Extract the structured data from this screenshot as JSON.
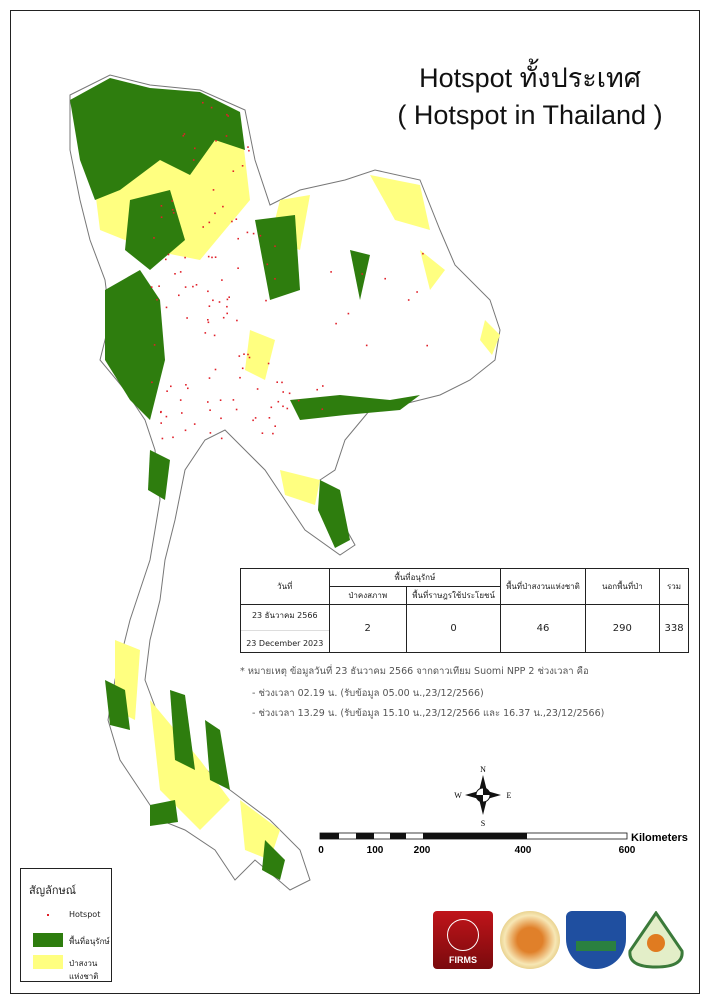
{
  "title": {
    "line1": "Hotspot ทั้งประเทศ",
    "line2": "( Hotspot in Thailand )"
  },
  "colors": {
    "conservation": "#2e7d0e",
    "national_reserve_forest": "#ffff80",
    "hotspot": "#e0202a",
    "province_border": "#888888"
  },
  "table": {
    "headers": {
      "date": "วันที่",
      "conservation": "พื้นที่อนุรักษ์",
      "intact_forest": "ป่าคงสภาพ",
      "people_use": "พื้นที่ราษฎรใช้ประโยชน์",
      "reserve_forest": "พื้นที่ป่าสงวนแห่งชาติ",
      "outside_forest": "นอกพื้นที่ป่า",
      "total": "รวม"
    },
    "row": {
      "date_th": "23 ธันวาคม 2566",
      "date_en": "23 December 2023",
      "intact_forest": "2",
      "people_use": "0",
      "reserve_forest": "46",
      "outside_forest": "290",
      "total": "338"
    }
  },
  "notes": [
    "* หมายเหตุ ข้อมูลวันที่ 23 ธันวาคม 2566 จากดาวเทียม Suomi NPP 2 ช่วงเวลา คือ",
    "- ช่วงเวลา 02.19 น. (รับข้อมูล 05.00 น.,23/12/2566)",
    "- ช่วงเวลา 13.29 น. (รับข้อมูล 15.10 น.,23/12/2566 และ 16.37 น.,23/12/2566)"
  ],
  "compass": {
    "n": "N",
    "s": "S",
    "e": "E",
    "w": "W"
  },
  "scale_bar": {
    "unit": "Kilometers",
    "ticks": [
      "0",
      "100",
      "200",
      "400",
      "600"
    ]
  },
  "legend": {
    "title": "สัญลักษณ์",
    "items": [
      {
        "label": "Hotspot",
        "symbol": "red-dot"
      },
      {
        "label": "พื้นที่อนุรักษ์",
        "symbol": "green-fill"
      },
      {
        "label": "ป่าสงวนแห่งชาติ",
        "symbol": "yellow-fill"
      }
    ]
  },
  "logos": [
    {
      "name": "nasa-firms-logo",
      "text": "FIRMS"
    },
    {
      "name": "agency-seal-logo"
    },
    {
      "name": "panther-shield-logo"
    },
    {
      "name": "forest-fire-control-logo"
    }
  ]
}
